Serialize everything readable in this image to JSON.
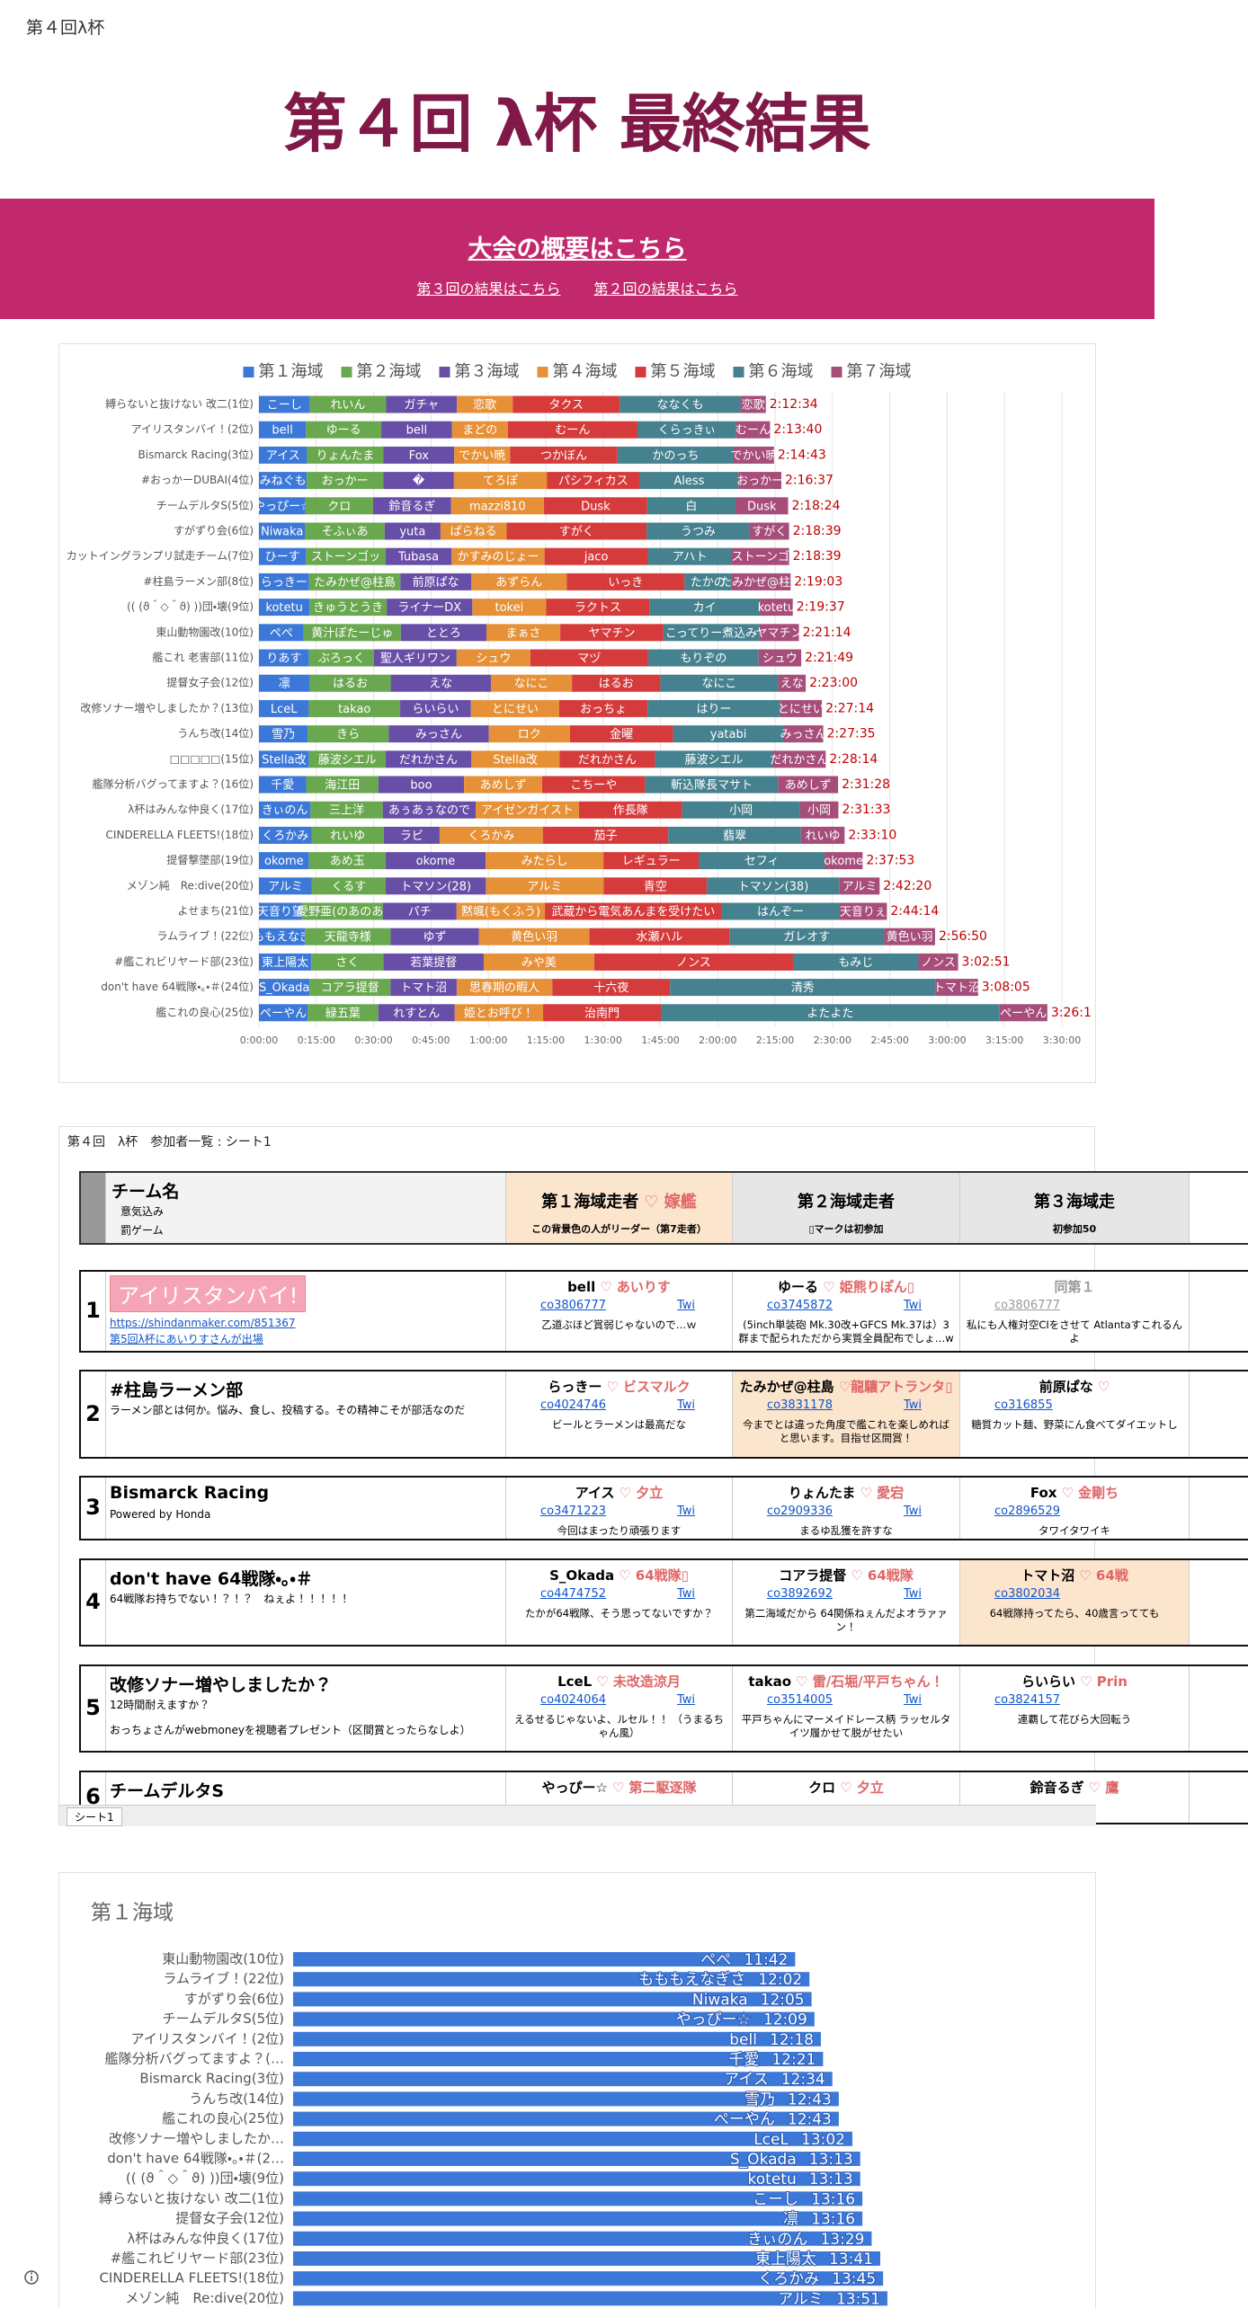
{
  "page": {
    "tab_title": "第４回λ杯",
    "heading": "第４回 λ杯 最終結果",
    "banner_link": "大会の概要はこちら",
    "links": [
      "第３回の結果はこちら",
      "第２回の結果はこちら"
    ]
  },
  "chart_data": [
    {
      "type": "stacked-bar",
      "orientation": "horizontal",
      "legend": "top",
      "grid": true,
      "categories": [
        "縛らないと抜けない 改二(1位)",
        "アイリスタンバイ！(2位)",
        "Bismarck Racing(3位)",
        "#おっかーDUBAI(4位)",
        "チームデルタS(5位)",
        "すがずり会(6位)",
        "カットイングランプリ試走チーム(7位)",
        "#柱島ラーメン部(8位)",
        "(( (ϑ＾◇＾ϑ) ))団・壊(9位)",
        "東山動物園改(10位)",
        "艦これ 老害部(11位)",
        "提督女子会(12位)",
        "改修ソナー増やしましたか？(13位)",
        "うんち改(14位)",
        "□□□□□(15位)",
        "艦隊分析バグってますよ？(16位)",
        "λ杯はみんな仲良く(17位)",
        "CINDERELLA FLEETS!(18位)",
        "提督撃墜部(19位)",
        "メゾン純　Re:dive(20位)",
        "よせまち(21位)",
        "ラムライブ！(22位)",
        "#艦これビリヤード部(23位)",
        "don't have 64戦隊・。・＃(24位)",
        "艦これの良心(25位)"
      ],
      "series": [
        {
          "name": "第１海域",
          "color": "#3c78d8",
          "values": [
            13.267,
            12.3,
            12.567,
            12.5,
            12.15,
            12.083,
            12.3,
            13.1,
            13.217,
            11.7,
            13.1,
            13.267,
            13.033,
            12.717,
            13.1,
            12.35,
            13.483,
            13.75,
            13.1,
            13.85,
            11.2,
            12.033,
            13.683,
            13.217,
            12.717
          ],
          "labels": [
            "こーし",
            "bell",
            "アイス",
            "みねぐも",
            "やっぴー☆",
            "Niwaka",
            "ひーす",
            "らっきー",
            "kotetu",
            "ぺぺ",
            "りあす",
            "凛",
            "LceL",
            "雪乃",
            "Stella改",
            "千愛",
            "きぃのん",
            "くろかみ",
            "okome",
            "アルミ",
            "天音り望",
            "もももえなぎさ",
            "東上陽太",
            "S_Okada",
            "ぺーやん"
          ]
        },
        {
          "name": "第２海域",
          "color": "#6aa84f",
          "values": [
            20,
            19.7,
            20,
            20,
            17.7,
            20.8,
            20.8,
            23.9,
            20.2,
            25.4,
            17,
            21.2,
            23.9,
            21.2,
            20,
            18.9,
            18.9,
            18.9,
            20,
            19.3,
            21.2,
            22.4,
            18.9,
            21.2,
            18.5
          ],
          "labels": [
            "れいん",
            "ゆーる",
            "りょんたま",
            "おっかー",
            "クロ",
            "そふぃあ",
            "ストーンゴッ",
            "たみかぜ@柱島",
            "きゅうとうき",
            "黄汁ぽたーじゅ",
            "ぶろっく",
            "はるお",
            "takao",
            "きら",
            "藤波シエル",
            "海江田",
            "三上洋",
            "れいゆ",
            "あめ玉",
            "くるす",
            "愛野亜(のあのあ)",
            "天龍寺様",
            "さく",
            "コアラ提督",
            "緑五葉"
          ]
        },
        {
          "name": "第３海域",
          "color": "#674ea7",
          "values": [
            18.5,
            18.5,
            18.5,
            18.5,
            20.4,
            14.6,
            17.3,
            18.5,
            22.4,
            22.4,
            21.6,
            26.2,
            18.5,
            26.2,
            22.4,
            22.4,
            24.3,
            14.6,
            26.2,
            26.2,
            19.3,
            23.1,
            26.2,
            17.3,
            20
          ],
          "labels": [
            "ガチャ",
            "bell",
            "Fox",
            "�",
            "鈴音るぎ",
            "yuta",
            "Tubasa",
            "前原ぱな",
            "ライナーDX",
            "ととろ",
            "聖人ギリワン",
            "えな",
            "らいらい",
            "みっさん",
            "だれかさん",
            "boo",
            "あぅあぅなので",
            "ラビ",
            "okome",
            "トマソン(28)",
            "パチ",
            "ゆず",
            "若葉提督",
            "トマト沼",
            "れすとん"
          ]
        },
        {
          "name": "第４海域",
          "color": "#e69138",
          "values": [
            14.6,
            14.6,
            14.6,
            24.3,
            24.3,
            17.3,
            24.3,
            25,
            19.3,
            19.3,
            19.3,
            21.2,
            23.1,
            21.2,
            23.1,
            20.4,
            27,
            27,
            30.8,
            30.8,
            23.1,
            28.9,
            28.9,
            25,
            23.1
          ],
          "labels": [
            "恋歌",
            "まどの",
            "でかい暁",
            "てろぽ",
            "mazzi810",
            "ぱらねる",
            "かすみのじょー",
            "あずらん",
            "tokei",
            "まぁさ",
            "シュウ",
            "なにこ",
            "とにせい",
            "ロク",
            "Stella改",
            "あめしず",
            "アイゼンガイスト",
            "くろかみ",
            "みたらし",
            "アルミ",
            "黙颯(もくふう)",
            "黄色い羽",
            "みや美",
            "思春期の暇人",
            "姫とお呼び！"
          ]
        },
        {
          "name": "第５海域",
          "color": "#d63b3b",
          "values": [
            28,
            33.9,
            28.1,
            24.3,
            27,
            36.6,
            27,
            30.8,
            27,
            27,
            30.8,
            23.1,
            23.1,
            27,
            25,
            27,
            27,
            32.8,
            25,
            27,
            46.2,
            36.6,
            52,
            30.8,
            30.8
          ],
          "labels": [
            "タクス",
            "むーん",
            "つかぼん",
            "パシフィカス",
            "Dusk",
            "すがく",
            "jaco",
            "いっき",
            "ラクトス",
            "ヤマチン",
            "マヅ",
            "はるお",
            "おっちょ",
            "金曜",
            "だれかさん",
            "こちーや",
            "作長隊",
            "茄子",
            "レギュラー",
            "青空",
            "武蔵から電気あんまを受けたい",
            "水瀬ハル",
            "ノンス",
            "十六夜",
            "治南門"
          ]
        },
        {
          "name": "第６海域",
          "color": "#45818e",
          "values": [
            31.6,
            25.8,
            30.4,
            25.8,
            23.1,
            27,
            22,
            12.3,
            28.9,
            25,
            28.9,
            30.8,
            34.7,
            28.9,
            30.8,
            34.7,
            30.8,
            34.7,
            32.8,
            34.7,
            30.8,
            40.5,
            32.8,
            69.4,
            88.6
          ],
          "labels": [
            "ななくも",
            "くらっきぃ",
            "かのっち",
            "Aless",
            "白",
            "うつみ",
            "アハト",
            "たかの",
            "カイ",
            "こってりー煮込み",
            "もりぞの",
            "なにこ",
            "はりー",
            "yatabi",
            "藤波シエル",
            "斬込隊長マサト",
            "小岡",
            "翡翠",
            "セフィ",
            "トマソン(38)",
            "はんぞー",
            "ガレオす",
            "もみじ",
            "清秀",
            "よたよた"
          ]
        },
        {
          "name": "第７海域",
          "color": "#a64d79",
          "values": [
            6.6,
            8.87,
            10.55,
            11.22,
            13.75,
            10.27,
            14.95,
            15.45,
            8.6,
            10.43,
            11.12,
            7.23,
            10.9,
            10.36,
            13.83,
            15.72,
            10.07,
            11.42,
            9.98,
            10.48,
            12.43,
            13.3,
            10.37,
            11.16,
            12.48
          ],
          "labels": [
            "恋歌",
            "むーん",
            "でかい暁",
            "おっかー",
            "Dusk",
            "すがく",
            "ストーンゴ",
            "たみかぜ@柱島",
            "kotetu",
            "ヤマチン",
            "シュウ",
            "えな",
            "とにせい",
            "みっさん",
            "だれかさん",
            "あめしず",
            "小岡",
            "れいゆ",
            "okome",
            "アルミ",
            "天音りぇ",
            "黄色い羽",
            "ノンス",
            "トマト沼",
            "ぺーやん"
          ]
        }
      ],
      "total_labels": [
        "2:12:34",
        "2:13:40",
        "2:14:43",
        "2:16:37",
        "2:18:24",
        "2:18:39",
        "2:18:39",
        "2:19:03",
        "2:19:37",
        "2:21:14",
        "2:21:49",
        "2:23:00",
        "2:27:14",
        "2:27:35",
        "2:28:14",
        "2:31:28",
        "2:31:33",
        "2:33:10",
        "2:37:53",
        "2:42:20",
        "2:44:14",
        "2:56:50",
        "3:02:51",
        "3:08:05",
        "3:26:1"
      ],
      "xlim": [
        0,
        210
      ],
      "xticks": [
        {
          "value": 0,
          "label": "0:00:00"
        },
        {
          "value": 15,
          "label": "0:15:00"
        },
        {
          "value": 30,
          "label": "0:30:00"
        },
        {
          "value": 45,
          "label": "0:45:00"
        },
        {
          "value": 60,
          "label": "1:00:00"
        },
        {
          "value": 75,
          "label": "1:15:00"
        },
        {
          "value": 90,
          "label": "1:30:00"
        },
        {
          "value": 105,
          "label": "1:45:00"
        },
        {
          "value": 120,
          "label": "2:00:00"
        },
        {
          "value": 135,
          "label": "2:15:00"
        },
        {
          "value": 150,
          "label": "2:30:00"
        },
        {
          "value": 165,
          "label": "2:45:00"
        },
        {
          "value": 180,
          "label": "3:00:00"
        },
        {
          "value": 195,
          "label": "3:15:00"
        },
        {
          "value": 210,
          "label": "3:30:00"
        }
      ]
    },
    {
      "type": "bar",
      "orientation": "horizontal",
      "title": "第１海域",
      "color": "#3c78d8",
      "categories": [
        "東山動物園改(10位)",
        "ラムライブ！(22位)",
        "すがずり会(6位)",
        "チームデルタS(5位)",
        "アイリスタンバイ！(2位)",
        "艦隊分析バグってますよ？(…",
        "Bismarck Racing(3位)",
        "うんち改(14位)",
        "艦これの良心(25位)",
        "改修ソナー増やしましたか…",
        "don't have 64戦隊・。・＃(2…",
        "(( (ϑ＾◇＾ϑ) ))団・壊(9位)",
        "縛らないと抜けない 改二(1位)",
        "提督女子会(12位)",
        "λ杯はみんな仲良く(17位)",
        "#艦これビリヤード部(23位)",
        "CINDERELLA FLEETS!(18位)",
        "メゾン純　Re:dive(20位)"
      ],
      "labels": [
        "ぺぺ",
        "もももえなぎさ",
        "Niwaka",
        "やっぴー☆",
        "bell",
        "千愛",
        "アイス",
        "雪乃",
        "ぺーやん",
        "LceL",
        "S_Okada",
        "kotetu",
        "こーし",
        "凛",
        "きぃのん",
        "東上陽太",
        "くろかみ",
        "アルミ"
      ],
      "values": [
        11.7,
        12.033,
        12.083,
        12.15,
        12.3,
        12.35,
        12.567,
        12.717,
        12.717,
        13.033,
        13.217,
        13.217,
        13.267,
        13.267,
        13.483,
        13.683,
        13.75,
        13.85
      ],
      "value_labels": [
        "11:42",
        "12:02",
        "12:05",
        "12:09",
        "12:18",
        "12:21",
        "12:34",
        "12:43",
        "12:43",
        "13:02",
        "13:13",
        "13:13",
        "13:16",
        "13:16",
        "13:29",
        "13:41",
        "13:45",
        "13:51"
      ],
      "xlim": [
        0,
        18
      ]
    }
  ],
  "sheet": {
    "title": "第４回　λ杯　参加者一覧 : シート1",
    "header": {
      "team": "チーム名",
      "motto": "意気込み",
      "penalty": "罰ゲーム",
      "columns": [
        {
          "name": "第１海域走者",
          "ship": "♡ 嫁艦",
          "note": "この背景色の人がリーダー（第7走者）"
        },
        {
          "name": "第２海域走者",
          "note": "▯マークは初参加"
        },
        {
          "name": "第３海域走",
          "note": "初参加50"
        }
      ]
    },
    "teams": [
      {
        "no": "1",
        "logo": "アイリスタンバイ!",
        "link": "https://shindanmaker.com/851367",
        "link2": "第5回λ杯にあいりすさんが出場",
        "runners": [
          {
            "name": "bell",
            "ship": "♡ あいりす",
            "id": "co3806777",
            "twi": "Twi",
            "comment": "乙道ぶほど賞弱じゃないので…ｗ"
          },
          {
            "name": "ゆーる",
            "ship": "♡ 姫熊りぽん▯",
            "id": "co3745872",
            "twi": "Twi",
            "comment": "(5inch単装砲 Mk.30改+GFCS Mk.37は）3群まで配られただから実質全員配布でしょ…w"
          },
          {
            "name": "同第１",
            "id": "co3806777",
            "muted": true,
            "comment": "私にも人権対空CIをさせて Atlantaすこれるんよ"
          }
        ]
      },
      {
        "no": "2",
        "name": "#柱島ラーメン部",
        "motto": "ラーメン部とは何か。悩み、食し、投稿する。その精神こそが部活なのだ",
        "runners": [
          {
            "name": "らっきー",
            "ship": "♡ ビスマルク",
            "id": "co4024746",
            "twi": "Twi",
            "comment": "ビールとラーメンは最高だな"
          },
          {
            "name": "たみかぜ@柱島",
            "ship": "♡龍驤アトランタ▯",
            "id": "co3831178",
            "twi": "Twi",
            "leader": true,
            "comment": "今までとは違った角度で艦これを楽しめればと思います。目指せ区間賞！"
          },
          {
            "name": "前原ぱな",
            "ship": "♡",
            "id": "co316855",
            "comment": "糖質カット麺、野菜にん食べてダイエットし"
          }
        ]
      },
      {
        "no": "3",
        "name": "Bismarck Racing",
        "motto": "Powered by Honda",
        "runners": [
          {
            "name": "アイス",
            "ship": "♡ 夕立",
            "id": "co3471223",
            "twi": "Twi",
            "comment": "今回はまったり頑張ります"
          },
          {
            "name": "りょんたま",
            "ship": "♡ 愛宕",
            "id": "co2909336",
            "twi": "Twi",
            "comment": "まるゆ乱獲を許すな"
          },
          {
            "name": "Fox",
            "ship": "♡ 金剛ち",
            "id": "co2896529",
            "comment": "タワイタワイキ"
          }
        ]
      },
      {
        "no": "4",
        "name": "don't have 64戦隊・。・＃",
        "motto": "64戦隊お持ちでない！？！？　ねぇよ！！！！！",
        "runners": [
          {
            "name": "S_Okada",
            "ship": "♡ 64戦隊▯",
            "id": "co4474752",
            "twi": "Twi",
            "comment": "たかが64戦隊、そう思ってないですか？"
          },
          {
            "name": "コアラ提督",
            "ship": "♡ 64戦隊",
            "id": "co3892692",
            "twi": "Twi",
            "comment": "第二海域だから 64関係ねぇんだよオラァァン！"
          },
          {
            "name": "トマト沼",
            "ship": "♡ 64戦",
            "id": "co3802034",
            "leader": true,
            "comment": "64戦隊持ってたら、40歳言ってても"
          }
        ]
      },
      {
        "no": "5",
        "name": "改修ソナー増やしましたか？",
        "motto": "12時間耐えますか？",
        "penalty": "おっちょさんがwebmoneyを視聴者プレゼント（区間賞とったらなしよ）",
        "runners": [
          {
            "name": "LceL",
            "ship": "♡ 未改造涼月",
            "id": "co4024064",
            "twi": "Twi",
            "comment": "えるせるじゃないよ、ルセル！！ （うまるちゃん風）"
          },
          {
            "name": "takao",
            "ship": "♡ 雷/石堀/平戸ちゃん！",
            "id": "co3514005",
            "twi": "Twi",
            "comment": "平戸ちゃんにマーメイドレース柄 ラッセルタイツ履かせて脱がせたい"
          },
          {
            "name": "らいらい",
            "ship": "♡ Prin",
            "id": "co3824157",
            "comment": "連覇して花びら大回転う"
          }
        ]
      },
      {
        "no": "6",
        "name": "チームデルタS",
        "runners": [
          {
            "name": "やっぴー☆",
            "ship": "♡ 第二駆逐隊"
          },
          {
            "name": "クロ",
            "ship": "♡ 夕立"
          },
          {
            "name": "鈴音るぎ",
            "ship": "♡ 鷹"
          }
        ]
      }
    ],
    "tab": "シート1"
  }
}
